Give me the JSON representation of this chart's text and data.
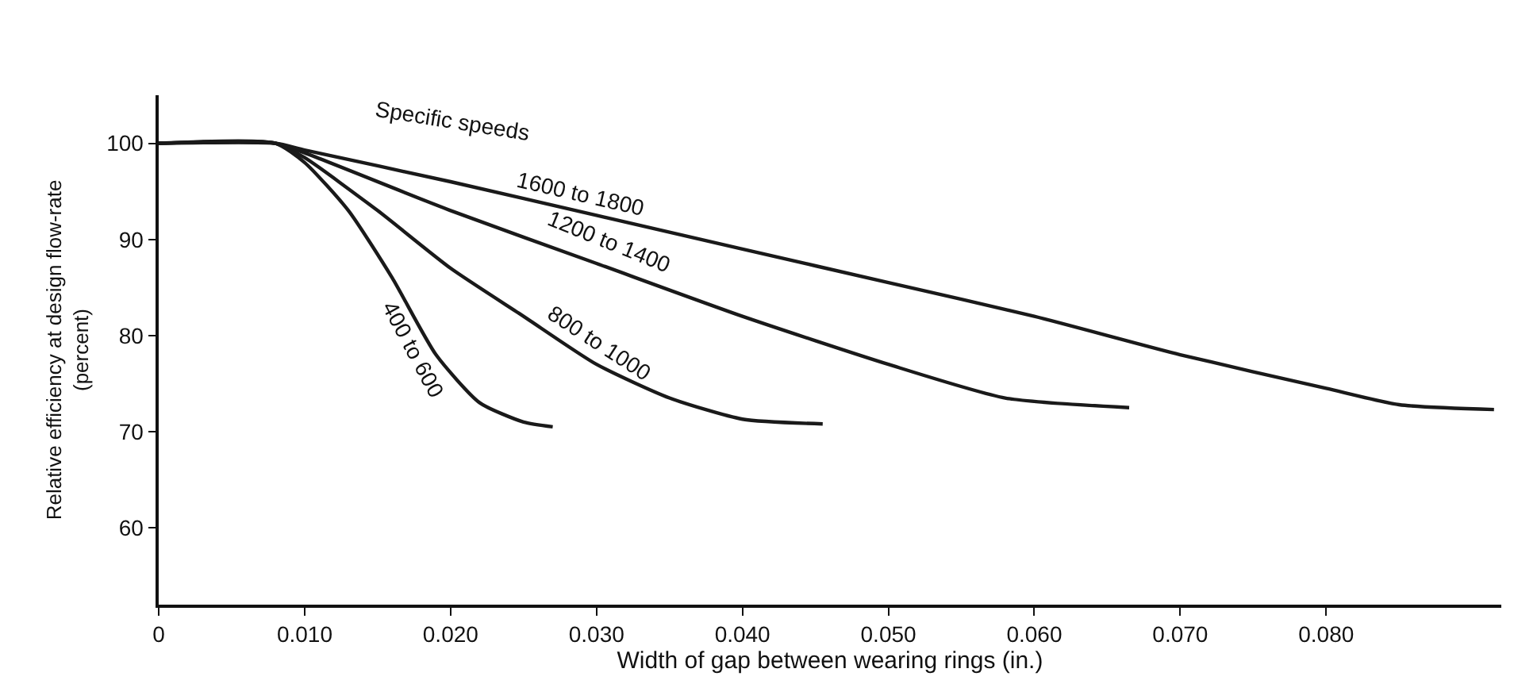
{
  "chart_data": {
    "type": "line",
    "xlabel": "Width of gap between wearing rings (in.)",
    "ylabel": "Relative efficiency at design flow-rate (percent)",
    "xlim": [
      0,
      0.092
    ],
    "ylim": [
      52,
      105
    ],
    "xticks": [
      0,
      {
        "value": 0.01,
        "label": "0.010"
      },
      {
        "value": 0.02,
        "label": "0.020"
      },
      {
        "value": 0.03,
        "label": "0.030"
      },
      {
        "value": 0.04,
        "label": "0.040"
      },
      {
        "value": 0.05,
        "label": "0.050"
      },
      {
        "value": 0.06,
        "label": "0.060"
      },
      {
        "value": 0.07,
        "label": "0.070"
      },
      {
        "value": 0.08,
        "label": "0.080"
      }
    ],
    "yticks": [
      60,
      70,
      80,
      90,
      100
    ],
    "legend": false,
    "marker": "none",
    "line_style": "solid",
    "annotations": [
      "Specific speeds"
    ],
    "series": [
      {
        "name": "400 to 600",
        "color": "#1a1a1a",
        "x": [
          0,
          0.008,
          0.01,
          0.013,
          0.016,
          0.019,
          0.022,
          0.025,
          0.027
        ],
        "values": [
          100,
          100,
          98,
          93,
          86,
          78,
          73,
          71,
          70.5
        ]
      },
      {
        "name": "800 to 1000",
        "color": "#1a1a1a",
        "x": [
          0,
          0.008,
          0.01,
          0.015,
          0.02,
          0.025,
          0.03,
          0.035,
          0.04,
          0.0455
        ],
        "values": [
          100,
          100,
          98.5,
          93,
          87,
          82,
          77,
          73.5,
          71.3,
          70.8
        ]
      },
      {
        "name": "1200 to 1400",
        "color": "#1a1a1a",
        "x": [
          0,
          0.008,
          0.01,
          0.02,
          0.03,
          0.04,
          0.05,
          0.058,
          0.0665
        ],
        "values": [
          100,
          100,
          99,
          93,
          87.5,
          82,
          77,
          73.5,
          72.5
        ]
      },
      {
        "name": "1600 to 1800",
        "color": "#1a1a1a",
        "x": [
          0,
          0.008,
          0.01,
          0.02,
          0.03,
          0.04,
          0.05,
          0.06,
          0.07,
          0.08,
          0.085,
          0.0915
        ],
        "values": [
          100,
          100,
          99.3,
          96,
          92.5,
          89,
          85.5,
          82,
          78,
          74.5,
          72.8,
          72.3
        ]
      }
    ]
  }
}
